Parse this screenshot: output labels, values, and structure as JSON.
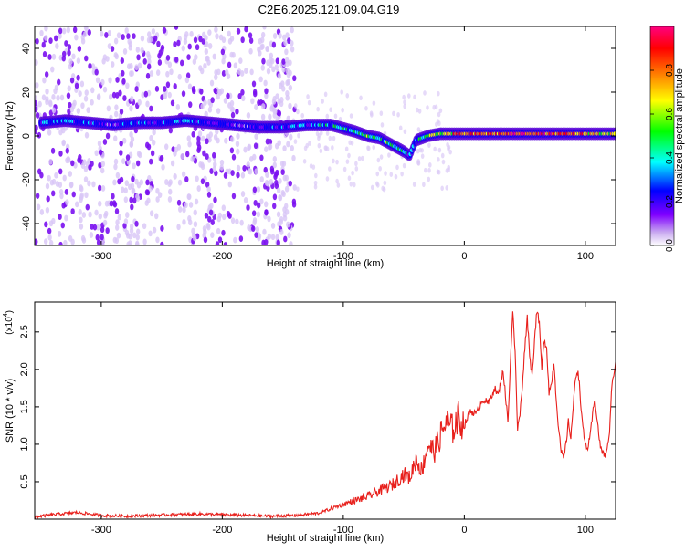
{
  "title": "C2E6.2025.121.09.04.G19",
  "chart_data": [
    {
      "type": "heatmap",
      "xlabel": "Height of straight line (km)",
      "ylabel": "Frequency (Hz)",
      "xlim": [
        -355,
        125
      ],
      "ylim": [
        -50,
        50
      ],
      "x_ticks": [
        -300,
        -200,
        -100,
        0,
        100
      ],
      "y_ticks": [
        -40,
        -20,
        0,
        20,
        40
      ],
      "colorbar": {
        "label": "Normalized spectral amplitude",
        "range": [
          0.0,
          1.0
        ],
        "ticks": [
          "0.0",
          "0.2",
          "0.4",
          "0.6",
          "0.8"
        ],
        "colors": [
          "#ffffff",
          "#c8a8f0",
          "#8000ff",
          "#0000ff",
          "#00ffff",
          "#00ff00",
          "#ffff00",
          "#ff8000",
          "#ff0000",
          "#ff0080"
        ]
      },
      "ridge": {
        "x": [
          -350,
          -330,
          -310,
          -290,
          -270,
          -250,
          -230,
          -210,
          -190,
          -170,
          -150,
          -130,
          -110,
          -90,
          -80,
          -70,
          -60,
          -50,
          -45,
          -40,
          -30,
          -20,
          0,
          20,
          50,
          80,
          110,
          125
        ],
        "y": [
          6,
          7,
          6,
          5,
          6,
          6,
          7,
          6,
          5,
          4,
          4,
          5,
          5,
          2,
          0,
          -1,
          -4,
          -7,
          -9,
          -2,
          0,
          1,
          1,
          1,
          1,
          1,
          1,
          1
        ],
        "amplitude": [
          0.35,
          0.4,
          0.3,
          0.2,
          0.35,
          0.3,
          0.4,
          0.25,
          0.2,
          0.2,
          0.3,
          0.35,
          0.45,
          0.5,
          0.55,
          0.5,
          0.55,
          0.45,
          0.35,
          0.4,
          0.6,
          0.7,
          0.8,
          0.85,
          0.95,
          0.85,
          0.75,
          0.7
        ]
      },
      "noise_region": [
        -355,
        -140
      ]
    },
    {
      "type": "line",
      "xlabel": "Height of straight line (km)",
      "ylabel": "SNR (10 * v/v)",
      "scale_label": "(x10",
      "scale_exp": "4",
      "xlim": [
        -355,
        125
      ],
      "ylim": [
        0,
        2.9
      ],
      "x_ticks": [
        -300,
        -200,
        -100,
        0,
        100
      ],
      "y_ticks": [
        "0.5",
        "1.0",
        "1.5",
        "2.0",
        "2.5"
      ],
      "y_tick_values": [
        0.5,
        1.0,
        1.5,
        2.0,
        2.5
      ],
      "series": [
        {
          "color": "#e8201c",
          "x": [
            -355,
            -340,
            -320,
            -300,
            -280,
            -260,
            -240,
            -220,
            -200,
            -180,
            -160,
            -140,
            -120,
            -110,
            -100,
            -90,
            -80,
            -70,
            -60,
            -50,
            -45,
            -40,
            -35,
            -30,
            -25,
            -20,
            -15,
            -10,
            -5,
            0,
            5,
            10,
            15,
            20,
            25,
            28,
            32,
            36,
            40,
            42,
            44,
            46,
            48,
            50,
            52,
            54,
            56,
            58,
            60,
            62,
            64,
            66,
            68,
            70,
            72,
            74,
            76,
            78,
            80,
            82,
            84,
            86,
            88,
            90,
            92,
            94,
            96,
            98,
            100,
            102,
            104,
            106,
            108,
            110,
            112,
            114,
            116,
            118,
            120,
            122,
            125
          ],
          "y": [
            0.03,
            0.06,
            0.09,
            0.05,
            0.04,
            0.05,
            0.06,
            0.07,
            0.06,
            0.05,
            0.04,
            0.05,
            0.08,
            0.14,
            0.2,
            0.25,
            0.3,
            0.38,
            0.45,
            0.6,
            0.55,
            0.8,
            0.65,
            1.0,
            0.9,
            1.1,
            1.3,
            1.2,
            1.35,
            1.25,
            1.45,
            1.4,
            1.6,
            1.55,
            1.75,
            1.65,
            2.0,
            1.3,
            2.8,
            2.2,
            1.2,
            1.4,
            1.8,
            2.3,
            2.7,
            2.2,
            1.9,
            2.4,
            2.8,
            2.6,
            2.0,
            2.4,
            2.3,
            1.7,
            1.8,
            2.1,
            1.6,
            1.2,
            0.9,
            0.8,
            1.0,
            1.3,
            1.1,
            1.5,
            1.9,
            2.0,
            1.6,
            1.2,
            1.0,
            0.95,
            1.1,
            1.4,
            1.6,
            1.3,
            1.0,
            0.9,
            0.85,
            0.9,
            1.2,
            1.8,
            2.1
          ]
        }
      ]
    }
  ]
}
